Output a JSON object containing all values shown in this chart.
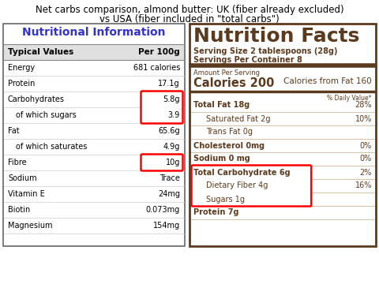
{
  "title_line1": "Net carbs comparison, almond butter: UK (fiber already excluded)",
  "title_line2": "vs USA (fiber included in \"total carbs\")",
  "title_fontsize": 8.5,
  "bg_color": "#ffffff",
  "uk_title": "Nutritional Information",
  "uk_title_color": "#3333cc",
  "uk_header_col1": "Typical Values",
  "uk_header_col2": "Per 100g",
  "uk_rows": [
    [
      "Energy",
      "681 calories"
    ],
    [
      "Protein",
      "17.1g"
    ],
    [
      "Carbohydrates",
      "5.8g"
    ],
    [
      "_of which sugars",
      "3.9"
    ],
    [
      "Fat",
      "65.6g"
    ],
    [
      "_of which saturates",
      "4.9g"
    ],
    [
      "Fibre",
      "10g"
    ],
    [
      "Sodium",
      "Trace"
    ],
    [
      "Vitamin E",
      "24mg"
    ],
    [
      "Biotin",
      "0.073mg"
    ],
    [
      "Magnesium",
      "154mg"
    ]
  ],
  "uk_highlight_row_groups": [
    [
      2,
      3
    ],
    [
      6
    ]
  ],
  "usa_title": "Nutrition Facts",
  "usa_subtitle1": "Serving Size 2 tablespoons (28g)",
  "usa_subtitle2": "Servings Per Container 8",
  "usa_amount_label": "Amount Per Serving",
  "usa_calories_label": "Calories 200",
  "usa_calories_fat_label": "Calories from Fat 160",
  "usa_daily_value_label": "% Daily Value*",
  "usa_rows": [
    [
      "Total Fat 18g",
      "28%",
      false
    ],
    [
      "Saturated Fat 2g",
      "10%",
      true
    ],
    [
      "Trans Fat 0g",
      "",
      true
    ],
    [
      "Cholesterol 0mg",
      "0%",
      false
    ],
    [
      "Sodium 0 mg",
      "0%",
      false
    ],
    [
      "Total Carbohydrate 6g",
      "2%",
      false
    ],
    [
      "Dietary Fiber 4g",
      "16%",
      true
    ],
    [
      "Sugars 1g",
      "",
      true
    ],
    [
      "Protein 7g",
      "",
      false
    ]
  ],
  "usa_highlight_rows": [
    5,
    6,
    7
  ],
  "usa_color": "#5c3a1e",
  "usa_border_color": "#5c3a1e"
}
